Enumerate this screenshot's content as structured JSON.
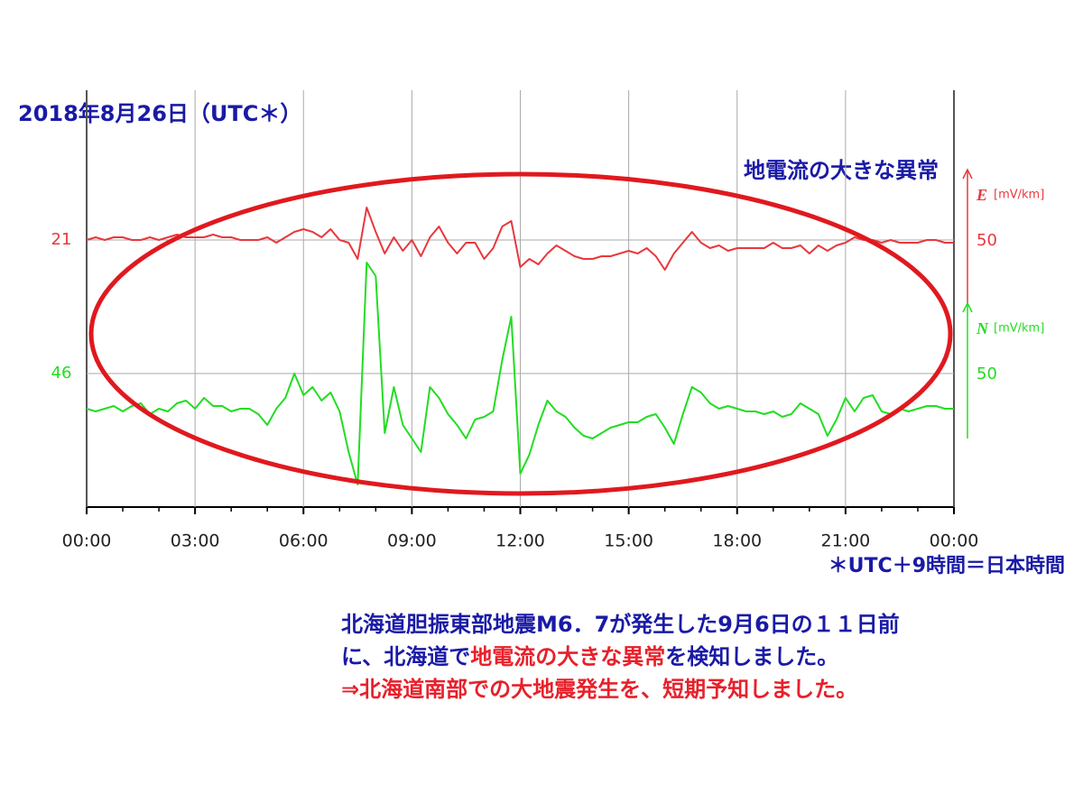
{
  "chart_data": {
    "type": "line",
    "title": "2018年8月26日（UTC＊）",
    "annotation": "地電流の大きな異常",
    "note": "＊UTC＋9時間＝日本時間",
    "x": [
      0,
      0.25,
      0.5,
      0.75,
      1,
      1.25,
      1.5,
      1.75,
      2,
      2.25,
      2.5,
      2.75,
      3,
      3.25,
      3.5,
      3.75,
      4,
      4.25,
      4.5,
      4.75,
      5,
      5.25,
      5.5,
      5.75,
      6,
      6.25,
      6.5,
      6.75,
      7,
      7.25,
      7.5,
      7.75,
      8,
      8.25,
      8.5,
      8.75,
      9,
      9.25,
      9.5,
      9.75,
      10,
      10.25,
      10.5,
      10.75,
      11,
      11.25,
      11.5,
      11.75,
      12,
      12.25,
      12.5,
      12.75,
      13,
      13.25,
      13.5,
      13.75,
      14,
      14.25,
      14.5,
      14.75,
      15,
      15.25,
      15.5,
      15.75,
      16,
      16.25,
      16.5,
      16.75,
      17,
      17.25,
      17.5,
      17.75,
      18,
      18.25,
      18.5,
      18.75,
      19,
      19.25,
      19.5,
      19.75,
      20,
      20.25,
      20.5,
      20.75,
      21,
      21.25,
      21.5,
      21.75,
      22,
      22.25,
      22.5,
      22.75,
      23,
      23.25,
      23.5,
      23.75,
      24
    ],
    "xlim": [
      0,
      24
    ],
    "xticks": [
      {
        "value": 0,
        "label": "00:00"
      },
      {
        "value": 3,
        "label": "03:00"
      },
      {
        "value": 6,
        "label": "06:00"
      },
      {
        "value": 9,
        "label": "09:00"
      },
      {
        "value": 12,
        "label": "12:00"
      },
      {
        "value": 15,
        "label": "15:00"
      },
      {
        "value": 18,
        "label": "18:00"
      },
      {
        "value": 21,
        "label": "21:00"
      },
      {
        "value": 24,
        "label": "00:00"
      }
    ],
    "grid": true,
    "series": [
      {
        "name": "E",
        "label": "21",
        "unit": "[mV/km]",
        "scale": 50,
        "color": "#e8383d",
        "values": [
          0,
          1,
          0,
          1,
          1,
          0,
          0,
          1,
          0,
          1,
          2,
          1,
          1,
          1,
          2,
          1,
          1,
          0,
          0,
          0,
          1,
          -1,
          1,
          3,
          4,
          3,
          1,
          4,
          0,
          -1,
          -7,
          12,
          3,
          -5,
          1,
          -4,
          0,
          -6,
          1,
          5,
          -1,
          -5,
          -1,
          -1,
          -7,
          -3,
          5,
          7,
          -10,
          -7,
          -9,
          -5,
          -2,
          -4,
          -6,
          -7,
          -7,
          -6,
          -6,
          -5,
          -4,
          -5,
          -3,
          -6,
          -11,
          -5,
          -1,
          3,
          -1,
          -3,
          -2,
          -4,
          -3,
          -3,
          -3,
          -3,
          -1,
          -3,
          -3,
          -2,
          -5,
          -2,
          -4,
          -2,
          -1,
          1,
          0,
          0,
          -1,
          0,
          -1,
          -1,
          -1,
          0,
          0,
          -1,
          -1
        ]
      },
      {
        "name": "N",
        "label": "46",
        "unit": "[mV/km]",
        "scale": 50,
        "color": "#22dd22",
        "values": [
          -13,
          -14,
          -13,
          -12,
          -14,
          -12,
          -11,
          -15,
          -13,
          -14,
          -11,
          -10,
          -13,
          -9,
          -12,
          -12,
          -14,
          -13,
          -13,
          -15,
          -19,
          -13,
          -9,
          0,
          -8,
          -5,
          -10,
          -7,
          -14,
          -29,
          -41,
          41,
          36,
          -22,
          -5,
          -19,
          -24,
          -29,
          -5,
          -9,
          -15,
          -19,
          -24,
          -17,
          -16,
          -14,
          5,
          21,
          -37,
          -30,
          -19,
          -10,
          -14,
          -16,
          -20,
          -23,
          -24,
          -22,
          -20,
          -19,
          -18,
          -18,
          -16,
          -15,
          -20,
          -26,
          -15,
          -5,
          -7,
          -11,
          -13,
          -12,
          -13,
          -14,
          -14,
          -15,
          -14,
          -16,
          -15,
          -11,
          -13,
          -15,
          -23,
          -17,
          -9,
          -14,
          -9,
          -8,
          -14,
          -15,
          -13,
          -14,
          -13,
          -12,
          -12,
          -13,
          -13
        ]
      }
    ],
    "body": [
      [
        {
          "text": "北海道胆振東部地震M6．7が発生した9月6日の１１日前",
          "color": "#1a1aa6"
        }
      ],
      [
        {
          "text": "に、北海道で",
          "color": "#1a1aa6"
        },
        {
          "text": "地電流の大きな異常",
          "color": "#e8202a"
        },
        {
          "text": "を検知しました。",
          "color": "#1a1aa6"
        }
      ],
      [
        {
          "text": "⇒北海道南部での大地震発生を、短期予知しました。",
          "color": "#e8202a"
        }
      ]
    ]
  }
}
